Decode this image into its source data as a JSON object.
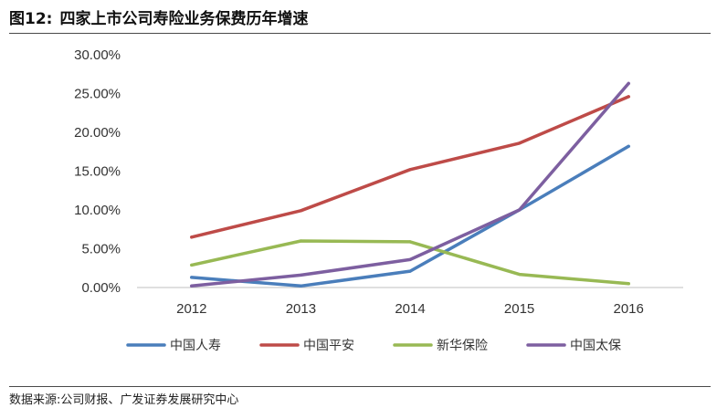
{
  "figure": {
    "number": "图12:",
    "title": "四家上市公司寿险业务保费历年增速",
    "source": "数据来源:公司财报、广发证券发展研究中心"
  },
  "chart_data": {
    "type": "line",
    "x": [
      "2012",
      "2013",
      "2014",
      "2015",
      "2016"
    ],
    "ylim": [
      0,
      30
    ],
    "yticks": [
      "0.00%",
      "5.00%",
      "10.00%",
      "15.00%",
      "20.00%",
      "25.00%",
      "30.00%"
    ],
    "legend_position": "bottom",
    "series": [
      {
        "name": "中国人寿",
        "color": "#4a7ebb",
        "values": [
          1.3,
          0.2,
          2.1,
          10.0,
          18.2
        ]
      },
      {
        "name": "中国平安",
        "color": "#be4b48",
        "values": [
          6.5,
          9.9,
          15.2,
          18.6,
          24.6
        ]
      },
      {
        "name": "新华保险",
        "color": "#98b954",
        "values": [
          2.9,
          6.0,
          5.9,
          1.7,
          0.5
        ]
      },
      {
        "name": "中国太保",
        "color": "#7d5fa0",
        "values": [
          0.2,
          1.6,
          3.6,
          10.0,
          26.3
        ]
      }
    ]
  }
}
